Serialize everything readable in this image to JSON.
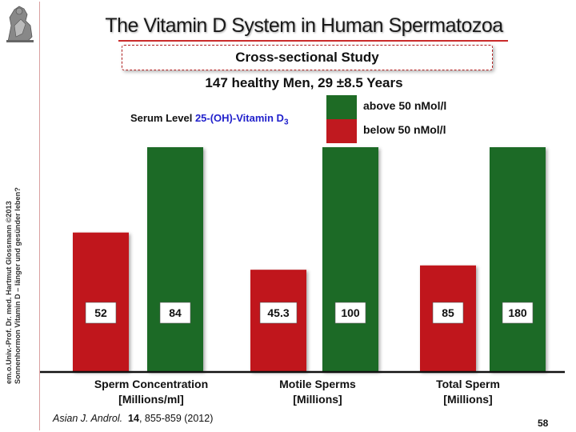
{
  "title": "The Vitamin D System in Human Spermatozoa",
  "study_type": "Cross-sectional Study",
  "subtitle": "147 healthy Men, 29 ±8.5 Years",
  "legend": {
    "prefix": "Serum Level ",
    "vitamin": "25-(OH)-Vitamin D",
    "subscript": "3",
    "entries": [
      {
        "label": "above 50 nMol/l",
        "color": "#1e6b25"
      },
      {
        "label": "below 50 nMol/l",
        "color": "#c0191f"
      }
    ]
  },
  "side_credit": {
    "line1": "em.o.Univ.-Prof. Dr. med. Hartmut Glossmann ©2013",
    "line2": "Sonnenhormon Vitamin D – länger und gesünder leben?"
  },
  "chart_data": {
    "type": "bar",
    "categories": [
      {
        "line1": "Sperm Concentration",
        "line2": "[Millions/ml]"
      },
      {
        "line1": "Motile Sperms",
        "line2": "[Millions]"
      },
      {
        "line1": "Total Sperm",
        "line2": "[Millions]"
      }
    ],
    "series": [
      {
        "name": "below 50 nMol/l",
        "color": "#c0191f",
        "values": [
          52,
          45.3,
          85
        ],
        "labels": [
          "52",
          "45.3",
          "85"
        ]
      },
      {
        "name": "above 50 nMol/l",
        "color": "#1e6b25",
        "values": [
          84,
          100,
          180
        ],
        "labels": [
          "84",
          "100",
          "180"
        ]
      }
    ],
    "scaling": "relative to above-50 group (each green bar = 100%)"
  },
  "citation": {
    "journal": "Asian J. Androl.",
    "volume": "14",
    "rest": ", 855-859 (2012)"
  },
  "page_number": "58"
}
